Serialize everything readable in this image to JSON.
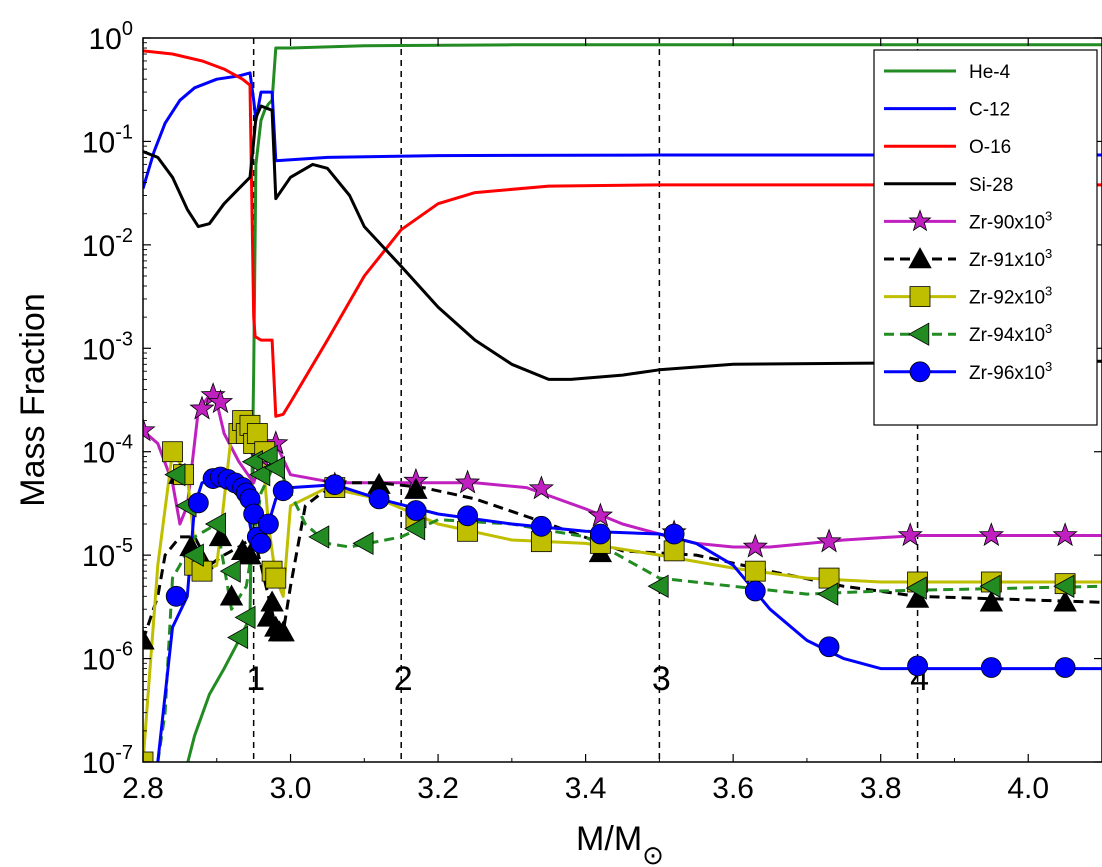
{
  "chart_data": {
    "type": "line",
    "xlabel": "M/M",
    "xlabel_sub": "⊙",
    "ylabel": "Mass Fraction",
    "xlim": [
      2.8,
      4.1
    ],
    "ylim": [
      1e-07,
      1.0
    ],
    "yscale": "log",
    "x_ticks": [
      2.8,
      3.0,
      3.2,
      3.4,
      3.6,
      3.8,
      4.0
    ],
    "x_tick_labels": [
      "2.8",
      "3.0",
      "3.2",
      "3.4",
      "3.6",
      "3.8",
      "4.0"
    ],
    "y_ticks": [
      1e-07,
      1e-06,
      1e-05,
      0.0001,
      0.001,
      0.01,
      0.1,
      1
    ],
    "y_tick_labels": [
      {
        "base": "10",
        "exp": "-7"
      },
      {
        "base": "10",
        "exp": "-6"
      },
      {
        "base": "10",
        "exp": "-5"
      },
      {
        "base": "10",
        "exp": "-4"
      },
      {
        "base": "10",
        "exp": "-3"
      },
      {
        "base": "10",
        "exp": "-2"
      },
      {
        "base": "10",
        "exp": "-1"
      },
      {
        "base": "10",
        "exp": "0"
      }
    ],
    "grid": false,
    "legend_position": "top-right",
    "vertical_lines": [
      {
        "x": 2.95,
        "label": "1"
      },
      {
        "x": 3.15,
        "label": "2"
      },
      {
        "x": 3.5,
        "label": "3"
      },
      {
        "x": 3.85,
        "label": "4"
      }
    ],
    "series": [
      {
        "name": "He-4",
        "color": "#228b22",
        "style": "solid",
        "marker": "none",
        "x": [
          2.85,
          2.87,
          2.89,
          2.91,
          2.93,
          2.945,
          2.95,
          2.953,
          2.96,
          2.965,
          2.97,
          2.975,
          2.98,
          3.0,
          3.1,
          3.3,
          3.6,
          4.1
        ],
        "y": [
          5e-08,
          1.8e-07,
          4.5e-07,
          8e-07,
          1.5e-06,
          2.5e-06,
          0.0006,
          0.06,
          0.16,
          0.2,
          0.23,
          0.25,
          0.8,
          0.8,
          0.84,
          0.86,
          0.86,
          0.86
        ]
      },
      {
        "name": "C-12",
        "color": "#0000ff",
        "style": "solid",
        "marker": "none",
        "x": [
          2.8,
          2.815,
          2.83,
          2.85,
          2.87,
          2.9,
          2.93,
          2.945,
          2.95,
          2.953,
          2.96,
          2.975,
          2.98,
          3.05,
          3.2,
          3.5,
          4.1
        ],
        "y": [
          0.035,
          0.08,
          0.15,
          0.25,
          0.33,
          0.4,
          0.43,
          0.46,
          0.25,
          0.16,
          0.3,
          0.3,
          0.065,
          0.07,
          0.073,
          0.074,
          0.074
        ]
      },
      {
        "name": "O-16",
        "color": "#ff0000",
        "style": "solid",
        "marker": "none",
        "x": [
          2.8,
          2.84,
          2.88,
          2.91,
          2.935,
          2.945,
          2.95,
          2.952,
          2.96,
          2.975,
          2.98,
          2.99,
          3.0,
          3.05,
          3.1,
          3.15,
          3.2,
          3.25,
          3.35,
          3.5,
          4.1
        ],
        "y": [
          0.75,
          0.7,
          0.6,
          0.5,
          0.4,
          0.35,
          0.002,
          0.0013,
          0.0012,
          0.0012,
          0.00022,
          0.00023,
          0.0003,
          0.0012,
          0.005,
          0.014,
          0.025,
          0.032,
          0.037,
          0.038,
          0.038
        ]
      },
      {
        "name": "Si-28",
        "color": "#000000",
        "style": "solid",
        "marker": "none",
        "x": [
          2.8,
          2.82,
          2.84,
          2.86,
          2.875,
          2.89,
          2.91,
          2.93,
          2.945,
          2.95,
          2.953,
          2.96,
          2.975,
          2.98,
          3.0,
          3.03,
          3.05,
          3.08,
          3.1,
          3.15,
          3.2,
          3.25,
          3.3,
          3.35,
          3.38,
          3.45,
          3.5,
          3.6,
          4.1
        ],
        "y": [
          0.08,
          0.07,
          0.045,
          0.022,
          0.015,
          0.016,
          0.025,
          0.035,
          0.045,
          0.1,
          0.17,
          0.22,
          0.2,
          0.028,
          0.045,
          0.06,
          0.055,
          0.03,
          0.015,
          0.0062,
          0.0025,
          0.0012,
          0.0007,
          0.0005,
          0.0005,
          0.00055,
          0.00062,
          0.0007,
          0.00075
        ]
      },
      {
        "name": "Zr-90x10",
        "sup": "3",
        "color": "#bf20bf",
        "style": "solid",
        "marker": "star",
        "x": [
          2.8,
          2.82,
          2.84,
          2.85,
          2.86,
          2.875,
          2.89,
          2.9,
          2.91,
          2.93,
          2.95,
          2.96,
          2.98,
          3.0,
          3.06,
          3.15,
          3.25,
          3.32,
          3.4,
          3.45,
          3.5,
          3.55,
          3.6,
          3.65,
          3.75,
          3.85,
          4.1
        ],
        "y": [
          0.00016,
          0.00012,
          5e-05,
          2e-05,
          3e-05,
          0.00025,
          0.00035,
          0.0003,
          0.00015,
          8e-05,
          5e-05,
          8e-05,
          0.00012,
          6e-05,
          5e-05,
          5e-05,
          5e-05,
          4.5e-05,
          2.8e-05,
          2e-05,
          1.6e-05,
          1.3e-05,
          1.2e-05,
          1.2e-05,
          1.4e-05,
          1.55e-05,
          1.55e-05
        ],
        "mx": [
          2.8,
          2.88,
          2.895,
          2.905,
          2.96,
          2.98,
          3.06,
          3.17,
          3.24,
          3.34,
          3.42,
          3.52,
          3.63,
          3.73,
          3.84,
          3.95,
          4.05
        ],
        "my": [
          0.00016,
          0.00026,
          0.00035,
          0.0003,
          9e-05,
          0.00012,
          4.8e-05,
          5.2e-05,
          5e-05,
          4.4e-05,
          2.4e-05,
          1.65e-05,
          1.2e-05,
          1.35e-05,
          1.55e-05,
          1.55e-05,
          1.55e-05
        ]
      },
      {
        "name": "Zr-91x10",
        "sup": "3",
        "color": "#000000",
        "style": "dashed",
        "marker": "triangle-up",
        "x": [
          2.8,
          2.82,
          2.83,
          2.85,
          2.87,
          2.89,
          2.91,
          2.93,
          2.95,
          2.96,
          2.98,
          2.99,
          3.0,
          3.02,
          3.06,
          3.12,
          3.18,
          3.25,
          3.35,
          3.45,
          3.55,
          3.65,
          3.75,
          3.85,
          4.1
        ],
        "y": [
          1.5e-06,
          4e-06,
          1e-05,
          1.5e-05,
          1.5e-05,
          8e-06,
          1e-05,
          1.2e-05,
          1.5e-05,
          8e-06,
          2e-06,
          1.8e-06,
          5e-06,
          3e-05,
          5e-05,
          5e-05,
          4.5e-05,
          3.5e-05,
          2e-05,
          1.1e-05,
          1e-05,
          7e-06,
          5e-06,
          4e-06,
          3.5e-06
        ],
        "mx": [
          2.8,
          2.85,
          2.865,
          2.88,
          2.905,
          2.92,
          2.935,
          2.945,
          2.97,
          2.975,
          2.98,
          2.985,
          2.99,
          3.12,
          3.17,
          3.42,
          3.85,
          3.95,
          4.05
        ],
        "my": [
          1.5e-06,
          6e-05,
          1.2e-05,
          9e-06,
          1.5e-05,
          4e-06,
          1.1e-05,
          1e-05,
          2.5e-06,
          3.5e-06,
          2e-06,
          1.8e-06,
          1.8e-06,
          4.8e-05,
          4.3e-05,
          1.05e-05,
          3.8e-06,
          3.5e-06,
          3.5e-06
        ]
      },
      {
        "name": "Zr-92x10",
        "sup": "3",
        "color": "#bfbf00",
        "style": "solid",
        "marker": "square",
        "x": [
          2.8,
          2.82,
          2.84,
          2.86,
          2.87,
          2.88,
          2.9,
          2.92,
          2.94,
          2.96,
          2.97,
          2.98,
          2.99,
          3.0,
          3.05,
          3.12,
          3.2,
          3.3,
          3.4,
          3.5,
          3.6,
          3.7,
          3.8,
          4.1
        ],
        "y": [
          1e-07,
          8e-06,
          0.0001,
          6e-05,
          1.2e-05,
          7e-06,
          8e-06,
          0.00015,
          0.0002,
          0.00015,
          2e-05,
          6e-06,
          4e-06,
          3e-05,
          4.5e-05,
          3.5e-05,
          2e-05,
          1.4e-05,
          1.3e-05,
          1e-05,
          7.5e-06,
          6e-06,
          5.5e-06,
          5.5e-06
        ],
        "mx": [
          2.8,
          2.84,
          2.855,
          2.87,
          2.88,
          2.93,
          2.935,
          2.94,
          2.945,
          2.95,
          2.955,
          2.965,
          2.975,
          2.98,
          3.06,
          3.17,
          3.24,
          3.34,
          3.42,
          3.52,
          3.63,
          3.73,
          3.85,
          3.95,
          4.05
        ],
        "my": [
          1e-07,
          0.0001,
          6e-05,
          8e-06,
          7e-06,
          0.00015,
          0.0002,
          0.00015,
          0.00018,
          0.00012,
          0.00015,
          0.0001,
          7e-06,
          6e-06,
          4.5e-05,
          2.3e-05,
          1.7e-05,
          1.35e-05,
          1.3e-05,
          1.1e-05,
          7e-06,
          6e-06,
          5.5e-06,
          5.5e-06,
          5.3e-06
        ]
      },
      {
        "name": "Zr-94x10",
        "sup": "3",
        "color": "#228b22",
        "style": "dashed",
        "marker": "triangle-left",
        "x": [
          2.82,
          2.83,
          2.84,
          2.85,
          2.87,
          2.9,
          2.92,
          2.94,
          2.96,
          2.98,
          3.0,
          3.02,
          3.05,
          3.08,
          3.15,
          3.2,
          3.3,
          3.4,
          3.5,
          3.6,
          3.7,
          3.8,
          4.1
        ],
        "y": [
          1e-07,
          3e-07,
          6e-06,
          8e-06,
          1.5e-05,
          2e-05,
          3e-06,
          5e-06,
          4e-05,
          8e-05,
          4e-05,
          2e-05,
          1.3e-05,
          1.2e-05,
          1.5e-05,
          2.2e-05,
          2e-05,
          1.5e-05,
          6e-06,
          5e-06,
          4.2e-06,
          4.5e-06,
          5e-06
        ],
        "mx": [
          2.845,
          2.86,
          2.87,
          2.9,
          2.92,
          2.93,
          2.94,
          2.95,
          2.96,
          2.97,
          2.98,
          3.04,
          3.1,
          3.17,
          3.5,
          3.73,
          3.85,
          3.95,
          4.05
        ],
        "my": [
          6e-05,
          3e-05,
          1e-05,
          2e-05,
          7e-06,
          1.6e-06,
          2.5e-06,
          8e-05,
          6e-05,
          9e-05,
          7e-05,
          1.5e-05,
          1.3e-05,
          1.8e-05,
          5e-06,
          4.2e-06,
          4.8e-06,
          5e-06,
          5e-06
        ]
      },
      {
        "name": "Zr-96x10",
        "sup": "3",
        "color": "#0000ff",
        "style": "solid",
        "marker": "circle",
        "x": [
          2.82,
          2.84,
          2.86,
          2.87,
          2.88,
          2.9,
          2.92,
          2.94,
          2.95,
          2.96,
          2.97,
          2.98,
          3.0,
          3.06,
          3.12,
          3.2,
          3.3,
          3.4,
          3.5,
          3.55,
          3.6,
          3.65,
          3.7,
          3.75,
          3.8,
          3.85,
          4.1
        ],
        "y": [
          1e-07,
          2e-06,
          4e-06,
          3e-05,
          5e-05,
          5.5e-05,
          5e-05,
          3e-05,
          1.3e-05,
          1.2e-05,
          2e-05,
          3.5e-05,
          4.5e-05,
          4.8e-05,
          3.5e-05,
          2.5e-05,
          2e-05,
          1.7e-05,
          1.6e-05,
          1.3e-05,
          8e-06,
          3e-06,
          1.5e-06,
          1e-06,
          8e-07,
          8e-07,
          8e-07
        ],
        "mx": [
          2.845,
          2.875,
          2.895,
          2.905,
          2.915,
          2.925,
          2.935,
          2.94,
          2.945,
          2.95,
          2.955,
          2.96,
          2.97,
          2.99,
          3.06,
          3.12,
          3.17,
          3.24,
          3.34,
          3.42,
          3.52,
          3.63,
          3.73,
          3.85,
          3.95,
          4.05
        ],
        "my": [
          4e-06,
          3.2e-05,
          5.5e-05,
          5.7e-05,
          5.4e-05,
          5e-05,
          4.5e-05,
          4e-05,
          3.5e-05,
          2.5e-05,
          1.5e-05,
          1.3e-05,
          2e-05,
          4.2e-05,
          4.8e-05,
          3.5e-05,
          2.7e-05,
          2.4e-05,
          1.9e-05,
          1.6e-05,
          1.6e-05,
          4.5e-06,
          1.3e-06,
          8.5e-07,
          8.2e-07,
          8.2e-07
        ]
      }
    ]
  }
}
